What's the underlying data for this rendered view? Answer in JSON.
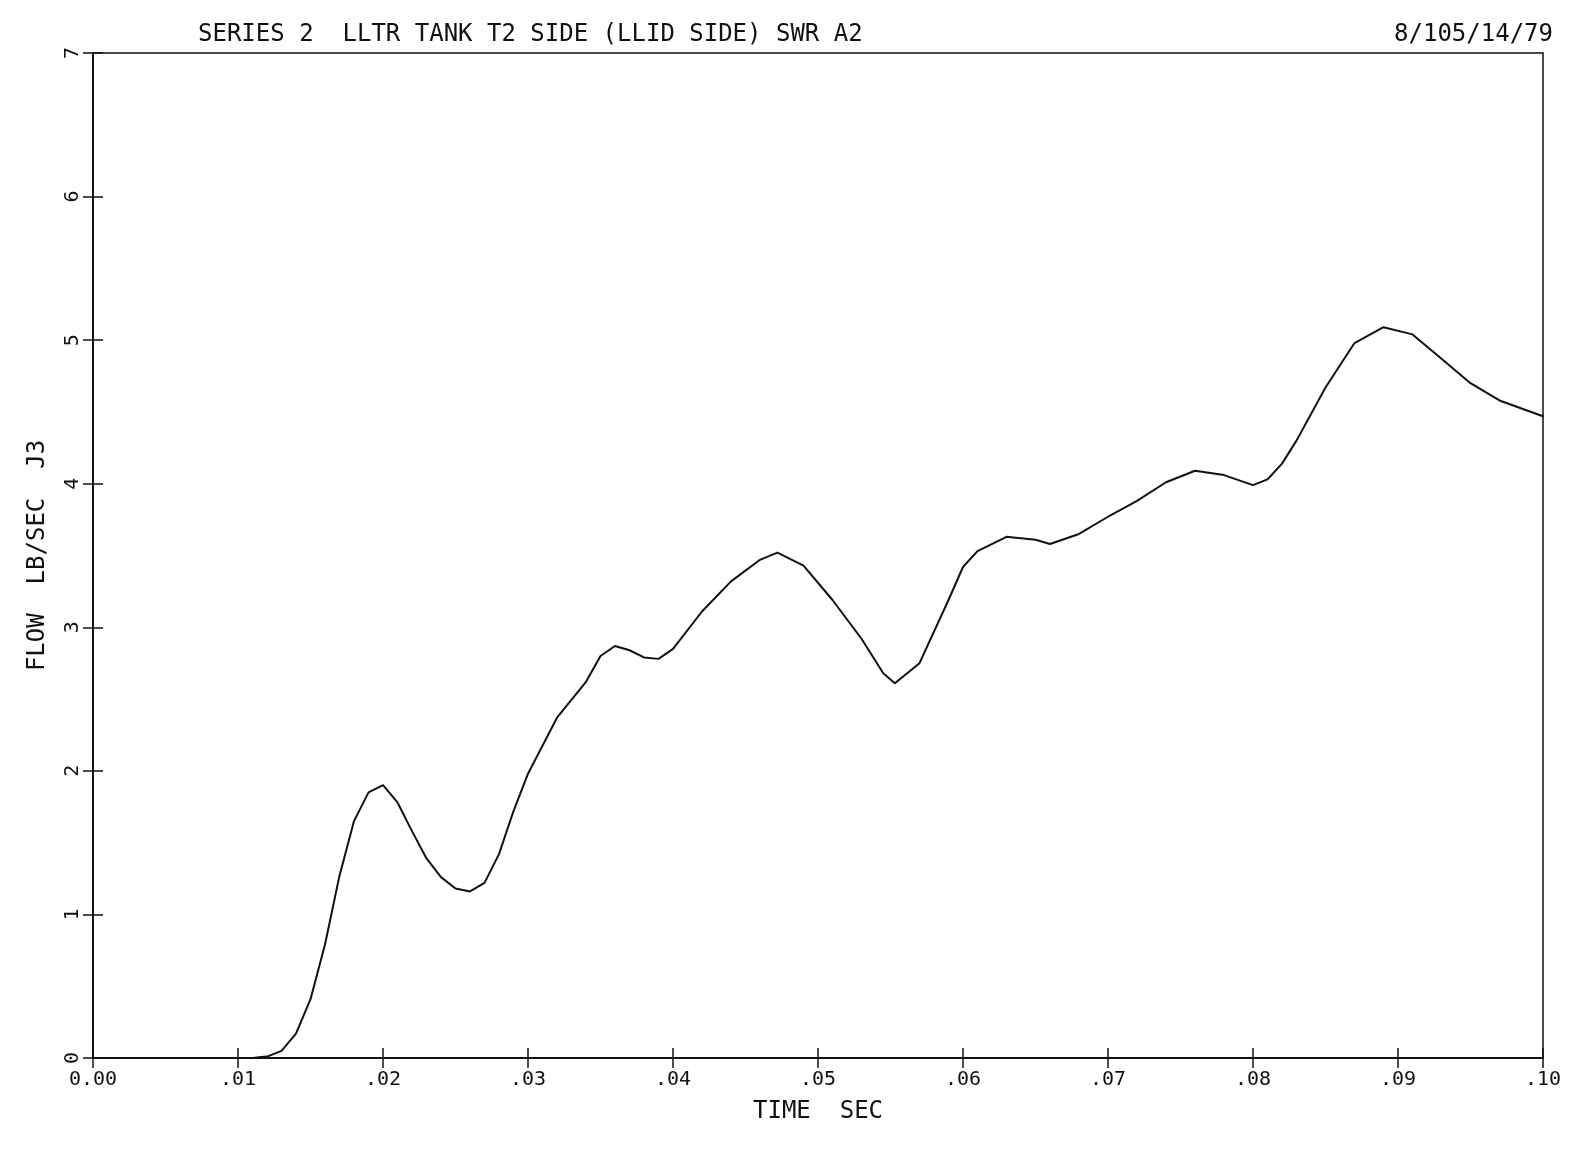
{
  "chart_data": {
    "type": "line",
    "title": "SERIES 2  LLTR TANK T2 SIDE (LLID SIDE) SWR A2",
    "subtitle": "8/105/14/79",
    "xlabel": "TIME  SEC",
    "ylabel": "FLOW  LB/SEC  J3",
    "x": [
      0,
      0.011,
      0.012,
      0.013,
      0.014,
      0.015,
      0.016,
      0.017,
      0.018,
      0.019,
      0.02,
      0.021,
      0.022,
      0.023,
      0.024,
      0.025,
      0.026,
      0.027,
      0.028,
      0.029,
      0.03,
      0.032,
      0.034,
      0.035,
      0.036,
      0.037,
      0.038,
      0.039,
      0.04,
      0.042,
      0.044,
      0.046,
      0.0472,
      0.049,
      0.051,
      0.053,
      0.0545,
      0.0553,
      0.057,
      0.059,
      0.06,
      0.061,
      0.063,
      0.065,
      0.066,
      0.068,
      0.07,
      0.072,
      0.074,
      0.076,
      0.078,
      0.08,
      0.081,
      0.082,
      0.083,
      0.085,
      0.087,
      0.089,
      0.091,
      0.093,
      0.095,
      0.097,
      0.1
    ],
    "series": [
      {
        "color": "#111111",
        "values": [
          0,
          0,
          0.01,
          0.05,
          0.17,
          0.41,
          0.79,
          1.27,
          1.65,
          1.85,
          1.9,
          1.78,
          1.58,
          1.39,
          1.26,
          1.18,
          1.16,
          1.22,
          1.42,
          1.72,
          1.98,
          2.37,
          2.62,
          2.8,
          2.87,
          2.84,
          2.79,
          2.78,
          2.85,
          3.11,
          3.32,
          3.47,
          3.52,
          3.43,
          3.19,
          2.92,
          2.68,
          2.61,
          2.75,
          3.19,
          3.42,
          3.53,
          3.63,
          3.61,
          3.58,
          3.65,
          3.77,
          3.88,
          4.01,
          4.09,
          4.06,
          3.99,
          4.03,
          4.14,
          4.3,
          4.67,
          4.98,
          5.09,
          5.04,
          4.87,
          4.7,
          4.58,
          4.47
        ]
      }
    ],
    "xlim": [
      0,
      0.1
    ],
    "xticks": [
      {
        "value": 0,
        "label": "0.00"
      },
      {
        "value": 0.01,
        "label": ".01"
      },
      {
        "value": 0.02,
        "label": ".02"
      },
      {
        "value": 0.03,
        "label": ".03"
      },
      {
        "value": 0.04,
        "label": ".04"
      },
      {
        "value": 0.05,
        "label": ".05"
      },
      {
        "value": 0.06,
        "label": ".06"
      },
      {
        "value": 0.07,
        "label": ".07"
      },
      {
        "value": 0.08,
        "label": ".08"
      },
      {
        "value": 0.09,
        "label": ".09"
      },
      {
        "value": 0.1,
        "label": ".10"
      }
    ],
    "ylim": [
      0,
      7
    ],
    "yticks": [
      0,
      1,
      2,
      3,
      4,
      5,
      6,
      7
    ],
    "grid": false,
    "marker": "none",
    "line_style": "solid"
  }
}
